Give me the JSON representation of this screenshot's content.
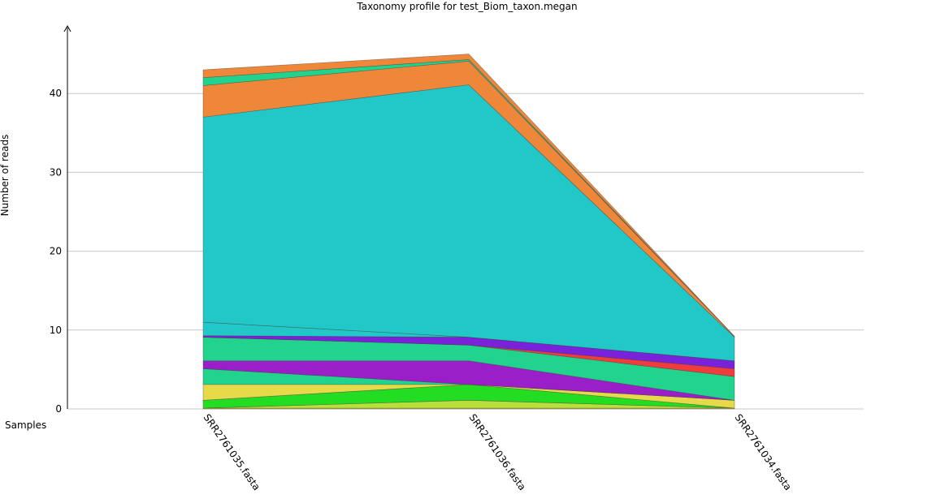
{
  "chart_data": {
    "type": "area",
    "title": "Taxonomy profile for test_Biom_taxon.megan",
    "xlabel": "Samples",
    "ylabel": "Number of reads",
    "categories": [
      "SRR2761035.fasta",
      "SRR2761036.fasta",
      "SRR2761034.fasta"
    ],
    "yticks": [
      0,
      10,
      20,
      30,
      40
    ],
    "ylim": [
      0,
      48
    ],
    "grid": true,
    "stacked": true,
    "series": [
      {
        "values": [
          0.1,
          0.1,
          0.1
        ],
        "color": "#e6d94a"
      },
      {
        "values": [
          0.0,
          1.0,
          0.0
        ],
        "color": "#b7e03a"
      },
      {
        "values": [
          1.0,
          2.0,
          0.0
        ],
        "color": "#22dd22"
      },
      {
        "values": [
          2.0,
          0.0,
          1.0
        ],
        "color": "#e6d94a"
      },
      {
        "values": [
          2.0,
          0.0,
          0.0
        ],
        "color": "#22d38e"
      },
      {
        "values": [
          1.0,
          3.0,
          0.0
        ],
        "color": "#9b1fc9"
      },
      {
        "values": [
          3.0,
          2.0,
          3.0
        ],
        "color": "#22d38e"
      },
      {
        "values": [
          0.0,
          0.0,
          1.0
        ],
        "color": "#f03c3c"
      },
      {
        "values": [
          0.2,
          1.0,
          1.0
        ],
        "color": "#7a22d9"
      },
      {
        "values": [
          1.7,
          0.0,
          0.0
        ],
        "color": "#22c8c8"
      },
      {
        "values": [
          26.0,
          32.0,
          3.0
        ],
        "color": "#22c8c8"
      },
      {
        "values": [
          4.0,
          3.0,
          0.1
        ],
        "color": "#ee873a"
      },
      {
        "values": [
          1.0,
          0.2,
          0.0
        ],
        "color": "#22d38e"
      },
      {
        "values": [
          1.0,
          0.7,
          0.0
        ],
        "color": "#ee873a"
      }
    ]
  }
}
